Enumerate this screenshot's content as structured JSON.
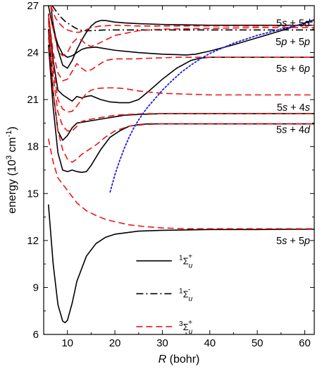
{
  "chart_data": {
    "type": "line",
    "xlabel_var": "R",
    "xlabel_unit": "(bohr)",
    "ylabel": "energy (10",
    "ylabel_exp": "3",
    "ylabel_unit": " cm",
    "ylabel_unit_exp": "-1",
    "ylabel_close": ")",
    "xlim": [
      5,
      62
    ],
    "ylim": [
      6,
      27
    ],
    "xticks": [
      10,
      20,
      30,
      40,
      50,
      60
    ],
    "yticks": [
      6,
      9,
      12,
      15,
      18,
      21,
      24,
      27
    ],
    "grid": false,
    "legend_position": "bottom-right",
    "asymptote_labels": [
      {
        "y": 25.9,
        "text": "5s + 5d"
      },
      {
        "y": 24.7,
        "text": "5p + 5p"
      },
      {
        "y": 23.0,
        "text": "5s + 6p"
      },
      {
        "y": 20.5,
        "text": "5s + 4s"
      },
      {
        "y": 19.1,
        "text": "5s + 4d"
      },
      {
        "y": 12.0,
        "text": "5s + 5p"
      }
    ],
    "legend": [
      {
        "label_main": "Σ",
        "label_sup": "1",
        "label_sub": "u",
        "label_sup2": "+",
        "style": "solid",
        "color": "#000000"
      },
      {
        "label_main": "Σ",
        "label_sup": "1",
        "label_sub": "u",
        "label_sup2": "-",
        "style": "dashdot",
        "color": "#000000"
      },
      {
        "label_main": "Σ",
        "label_sup": "3",
        "label_sub": "u",
        "label_sup2": "+",
        "style": "dashed",
        "color": "#e8171b"
      }
    ],
    "series": [
      {
        "style": "solid",
        "color": "#000000",
        "x": [
          6.0,
          7.0,
          8.0,
          9.0,
          9.5,
          10.0,
          11.0,
          12.0,
          14.0,
          16.0,
          18.0,
          20.0,
          25.0,
          30.0,
          40.0,
          50.0,
          62.0
        ],
        "y": [
          14.3,
          10.5,
          7.9,
          6.85,
          6.75,
          6.9,
          8.0,
          9.4,
          11.0,
          11.8,
          12.2,
          12.4,
          12.6,
          12.65,
          12.7,
          12.7,
          12.72
        ]
      },
      {
        "style": "solid",
        "color": "#000000",
        "x": [
          6.0,
          7.0,
          8.0,
          9.0,
          10.0,
          11.0,
          12.0,
          13.0,
          14.0,
          15.0,
          17.0,
          19.0,
          21.0,
          23.0,
          25.0,
          27.0,
          29.0,
          31.0,
          35.0,
          40.0,
          50.0,
          62.0
        ],
        "y": [
          24.5,
          20.5,
          17.6,
          16.5,
          16.4,
          16.5,
          16.4,
          16.35,
          16.4,
          16.8,
          17.8,
          18.6,
          19.0,
          19.3,
          19.4,
          19.45,
          19.45,
          19.45,
          19.45,
          19.45,
          19.45,
          19.45
        ]
      },
      {
        "style": "solid",
        "color": "#000000",
        "x": [
          6.0,
          7.0,
          8.0,
          9.0,
          10.0,
          11.0,
          12.0,
          14.0,
          16.0,
          18.0,
          20.0,
          22.0,
          25.0,
          30.0,
          40.0,
          50.0,
          62.0
        ],
        "y": [
          25.5,
          21.5,
          19.0,
          18.4,
          18.7,
          19.2,
          19.5,
          19.6,
          19.7,
          19.8,
          19.9,
          20.0,
          20.05,
          20.1,
          20.1,
          20.1,
          20.1
        ]
      },
      {
        "style": "solid",
        "color": "#000000",
        "x": [
          6.0,
          7.0,
          8.0,
          9.0,
          10.0,
          11.0,
          12.0,
          13.0,
          14.0,
          15.0,
          17.0,
          19.0,
          21.0,
          23.0,
          25.0,
          27.0,
          30.0,
          33.0,
          36.0,
          38.0,
          40.0,
          50.0,
          62.0
        ],
        "y": [
          26.5,
          23.5,
          21.6,
          21.3,
          21.1,
          20.9,
          21.2,
          21.1,
          21.2,
          21.25,
          21.0,
          20.85,
          20.8,
          20.8,
          21.0,
          21.5,
          22.3,
          23.0,
          23.5,
          23.65,
          23.7,
          23.7,
          23.7
        ]
      },
      {
        "style": "solid",
        "color": "#000000",
        "x": [
          6.0,
          7.0,
          8.0,
          9.0,
          10.0,
          11.0,
          12.0,
          13.0,
          14.0,
          16.0,
          20.0,
          25.0,
          30.0,
          35.0,
          37.0,
          40.0,
          45.0,
          50.0,
          55.0,
          62.0
        ],
        "y": [
          27.0,
          25.5,
          24.5,
          23.9,
          23.7,
          23.8,
          24.0,
          24.2,
          24.3,
          24.35,
          24.15,
          24.0,
          23.9,
          23.85,
          23.9,
          24.1,
          24.5,
          24.95,
          25.4,
          26.1
        ]
      },
      {
        "style": "solid",
        "color": "#000000",
        "x": [
          6.5,
          7.0,
          8.0,
          9.0,
          10.0,
          11.0,
          12.0,
          13.0,
          14.0,
          15.0,
          16.0,
          17.0,
          18.0,
          19.0,
          20.0,
          22.0,
          25.0,
          30.0,
          40.0,
          50.0,
          62.0
        ],
        "y": [
          27.0,
          25.8,
          24.2,
          23.2,
          23.0,
          23.5,
          24.2,
          24.8,
          25.3,
          25.7,
          25.95,
          26.05,
          26.05,
          26.0,
          25.95,
          25.9,
          25.85,
          25.8,
          25.75,
          25.75,
          25.75
        ]
      },
      {
        "style": "dashdot",
        "color": "#000000",
        "x": [
          6.8,
          7.5,
          8.5,
          9.5,
          10.5,
          11.5,
          12.5,
          13.5,
          15.0,
          18.0,
          22.0,
          30.0,
          40.0,
          50.0,
          62.0
        ],
        "y": [
          27.0,
          26.7,
          26.3,
          26.0,
          25.8,
          25.6,
          25.45,
          25.4,
          25.4,
          25.45,
          25.45,
          25.45,
          25.45,
          25.45,
          25.45
        ]
      },
      {
        "style": "dashed",
        "color": "#e8171b",
        "x": [
          6.0,
          7.0,
          8.0,
          9.0,
          10.0,
          11.0,
          12.0,
          14.0,
          16.0,
          18.0,
          20.0,
          23.0,
          26.0,
          30.0,
          35.0,
          40.0,
          50.0,
          62.0
        ],
        "y": [
          18.5,
          17.0,
          16.0,
          15.6,
          15.2,
          14.8,
          14.4,
          13.9,
          13.6,
          13.35,
          13.2,
          13.0,
          12.9,
          12.8,
          12.75,
          12.75,
          12.75,
          12.75
        ]
      },
      {
        "style": "dashed",
        "color": "#e8171b",
        "x": [
          6.0,
          7.0,
          8.0,
          9.0,
          10.0,
          11.0,
          12.0,
          13.0,
          14.0,
          15.0,
          16.0,
          18.0,
          20.0,
          23.0,
          26.0,
          30.0,
          40.0,
          50.0,
          62.0
        ],
        "y": [
          25.0,
          21.5,
          19.0,
          17.8,
          17.2,
          17.0,
          17.2,
          17.5,
          17.7,
          17.9,
          18.1,
          18.6,
          19.0,
          19.3,
          19.4,
          19.45,
          19.45,
          19.45,
          19.45
        ]
      },
      {
        "style": "dashed",
        "color": "#e8171b",
        "x": [
          6.0,
          7.0,
          8.0,
          9.0,
          10.0,
          11.0,
          12.0,
          13.0,
          14.0,
          16.0,
          18.0,
          20.0,
          23.0,
          26.0,
          30.0,
          40.0,
          50.0,
          62.0
        ],
        "y": [
          26.0,
          22.5,
          20.2,
          19.3,
          19.0,
          19.0,
          19.3,
          19.6,
          19.7,
          19.8,
          19.9,
          20.0,
          20.05,
          20.1,
          20.1,
          20.1,
          20.1,
          20.1
        ]
      },
      {
        "style": "dashed",
        "color": "#e8171b",
        "x": [
          6.0,
          7.0,
          8.0,
          9.0,
          10.0,
          11.0,
          12.0,
          13.0,
          14.0,
          15.0,
          16.0,
          18.0,
          20.0,
          22.0,
          25.0,
          30.0,
          40.0,
          50.0,
          62.0
        ],
        "y": [
          26.2,
          23.0,
          21.0,
          20.4,
          20.2,
          20.25,
          20.6,
          21.0,
          21.4,
          21.6,
          21.7,
          21.75,
          21.75,
          21.7,
          21.55,
          21.4,
          21.3,
          21.3,
          21.3
        ]
      },
      {
        "style": "dashed",
        "color": "#e8171b",
        "x": [
          6.0,
          7.0,
          8.0,
          9.0,
          10.0,
          11.0,
          12.0,
          13.0,
          14.0,
          15.0,
          16.0,
          17.0,
          18.0,
          20.0,
          22.0,
          24.0,
          28.0,
          33.0,
          40.0,
          50.0,
          62.0
        ],
        "y": [
          26.5,
          24.0,
          22.7,
          22.2,
          22.3,
          22.8,
          23.3,
          23.0,
          22.8,
          22.9,
          23.1,
          23.3,
          23.5,
          23.6,
          23.6,
          23.6,
          23.65,
          23.7,
          23.7,
          23.7,
          23.7
        ]
      },
      {
        "style": "dashed",
        "color": "#e8171b",
        "x": [
          6.5,
          7.0,
          8.0,
          9.0,
          10.0,
          11.0,
          12.0,
          13.0,
          14.0,
          15.0,
          16.0,
          18.0,
          20.0,
          25.0,
          30.0,
          40.0,
          50.0,
          62.0
        ],
        "y": [
          27.0,
          25.5,
          24.1,
          23.8,
          24.0,
          24.6,
          24.9,
          24.8,
          24.5,
          24.4,
          24.5,
          24.8,
          25.1,
          25.4,
          25.5,
          25.55,
          25.6,
          25.6
        ]
      },
      {
        "style": "dashed",
        "color": "#e8171b",
        "x": [
          6.5,
          7.5,
          8.5,
          9.5,
          10.5,
          11.5,
          12.5,
          13.5,
          15.0,
          17.0,
          20.0,
          25.0,
          30.0,
          40.0,
          50.0,
          62.0
        ],
        "y": [
          27.0,
          26.2,
          25.8,
          25.5,
          25.4,
          25.3,
          25.3,
          25.4,
          25.6,
          25.7,
          25.75,
          25.7,
          25.7,
          25.7,
          25.7,
          25.75
        ]
      },
      {
        "style": "dotted",
        "color": "#1b1be0",
        "x": [
          19.0,
          20.0,
          21.0,
          22.0,
          23.0,
          24.0,
          25.0,
          26.0,
          27.0,
          28.0,
          30.0,
          32.0,
          34.0,
          36.0,
          38.0,
          40.0,
          45.0,
          50.0,
          55.0,
          62.0
        ],
        "y": [
          15.1,
          16.2,
          17.1,
          17.9,
          18.6,
          19.2,
          19.7,
          20.15,
          20.55,
          20.9,
          21.6,
          22.2,
          22.75,
          23.2,
          23.6,
          23.95,
          24.6,
          25.1,
          25.5,
          26.0
        ]
      }
    ]
  }
}
